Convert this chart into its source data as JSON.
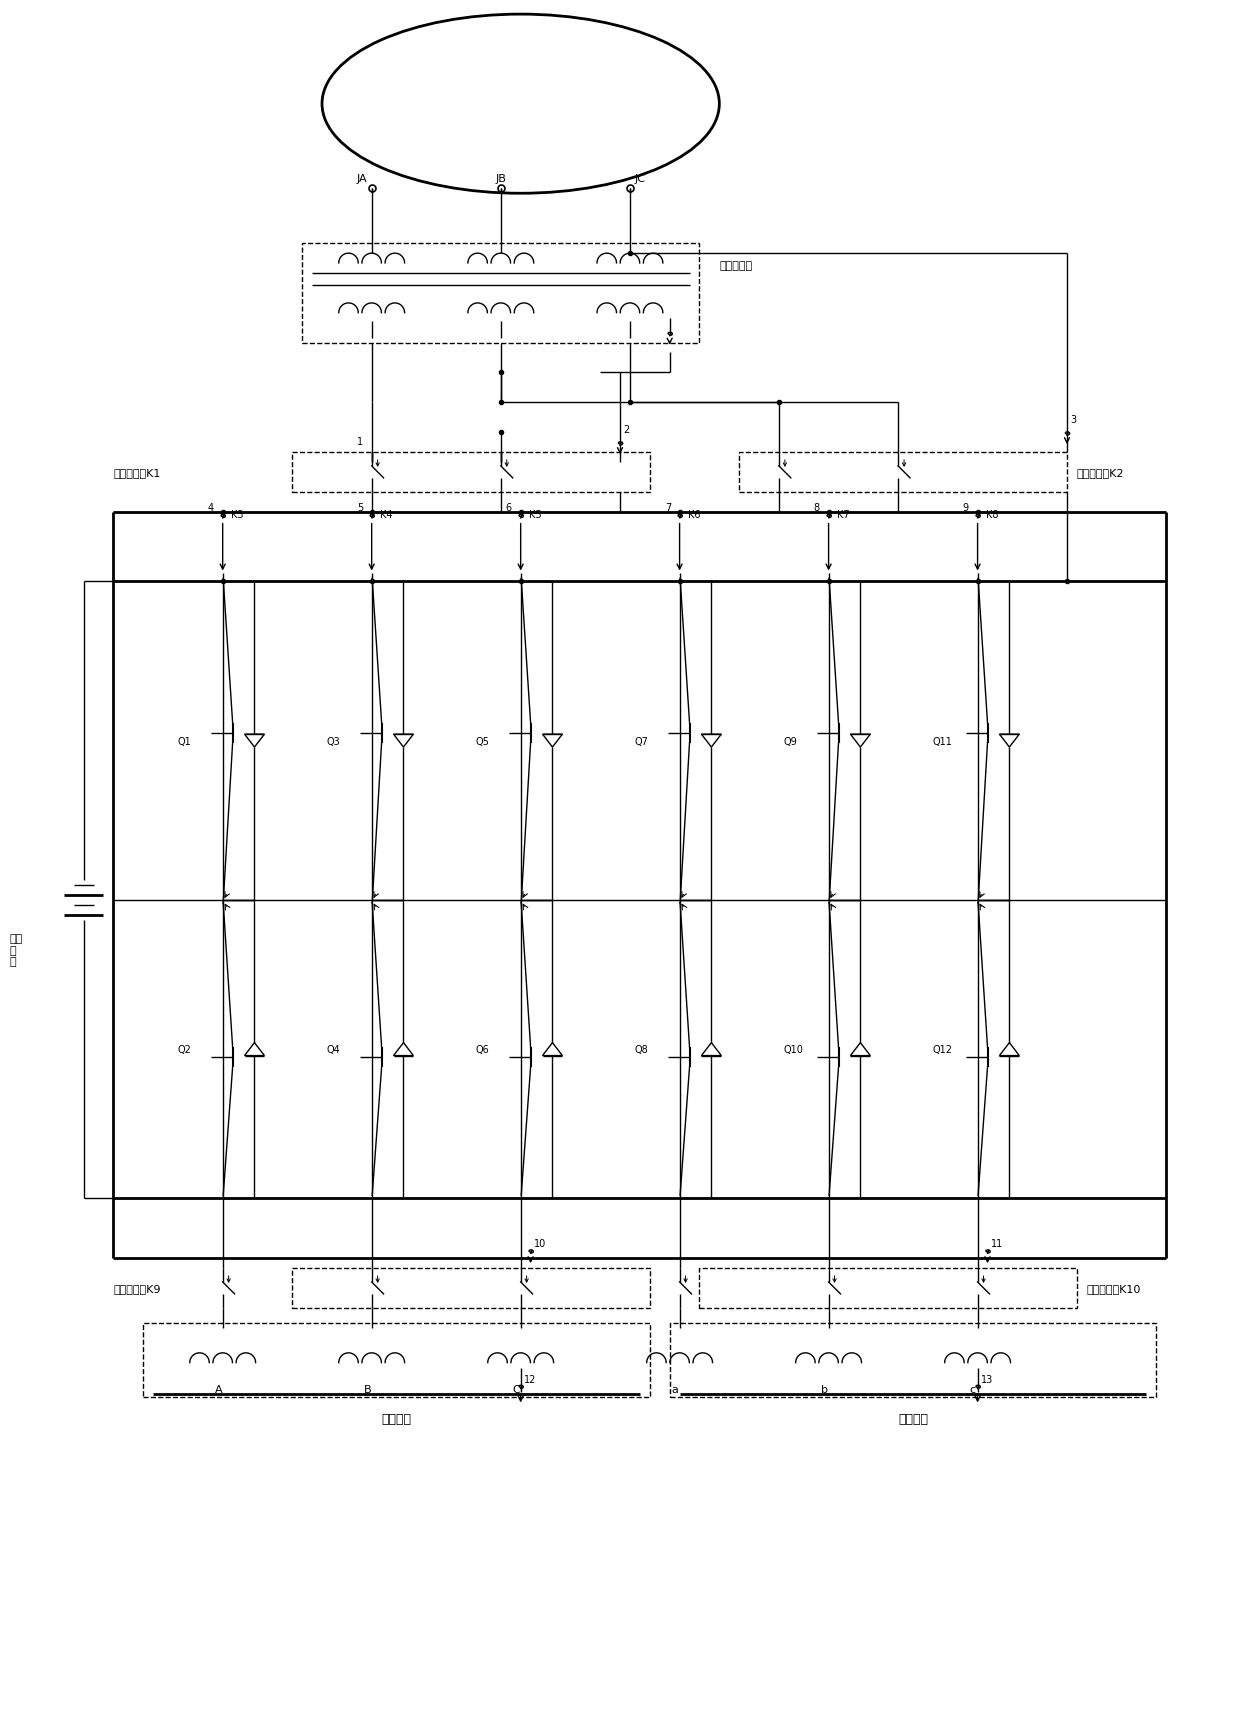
{
  "bg_color": "#ffffff",
  "fig_width": 12.4,
  "fig_height": 17.31,
  "labels": {
    "JA": "JA",
    "JB": "JB",
    "JC": "JC",
    "transformer": "降压变压器",
    "relay_K1": "继电器开关K1",
    "relay_K2": "继电器开关K2",
    "relay_K9": "继电器开关K9",
    "relay_K10": "继电器开关K10",
    "battery": "动力\n电\n池",
    "winding1": "第一绕组",
    "winding2": "第二绕组"
  }
}
